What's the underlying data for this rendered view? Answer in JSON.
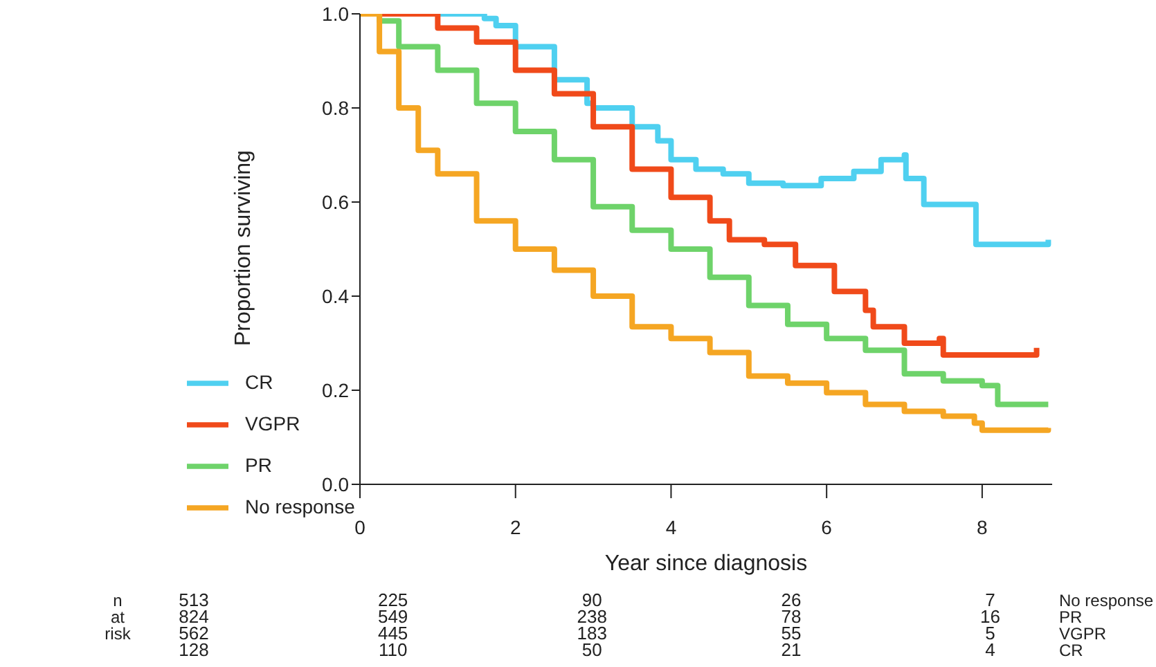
{
  "chart_data": {
    "type": "step",
    "xlabel": "Year since diagnosis",
    "ylabel": "Proportion surviving",
    "xlim": [
      0,
      8.9
    ],
    "xticks": [
      0,
      2,
      4,
      6,
      8
    ],
    "ylim": [
      0,
      1
    ],
    "yticks": [
      {
        "value": 0,
        "label": "0.0"
      },
      0.2,
      0.4,
      0.6,
      0.8,
      {
        "value": 1,
        "label": "1.0"
      }
    ],
    "legend": "bottom left",
    "grid": false,
    "marker": "none",
    "series": [
      {
        "name": "CR",
        "color": "#4fd0f0",
        "x": [
          0,
          1.6,
          1.75,
          2.0,
          2.5,
          2.92,
          3.0,
          3.5,
          3.83,
          4.0,
          4.32,
          4.67,
          5.0,
          5.44,
          5.93,
          6.35,
          6.7,
          7.0,
          7.02,
          7.24,
          7.25,
          7.9,
          7.92,
          8.25,
          8.85
        ],
        "values": [
          1,
          0.99,
          0.975,
          0.93,
          0.86,
          0.81,
          0.8,
          0.76,
          0.73,
          0.69,
          0.67,
          0.66,
          0.64,
          0.635,
          0.65,
          0.665,
          0.69,
          0.7,
          0.65,
          0.65,
          0.595,
          0.595,
          0.51,
          0.51,
          0.52
        ]
      },
      {
        "name": "VGPR",
        "color": "#f04a1a",
        "x": [
          0,
          0.67,
          1.0,
          1.5,
          2.0,
          2.5,
          3.0,
          3.5,
          4.0,
          4.5,
          4.75,
          5.2,
          5.6,
          6.1,
          6.5,
          6.6,
          6.95,
          7.0,
          7.45,
          7.5,
          8.25,
          8.7
        ],
        "values": [
          1,
          1,
          0.97,
          0.94,
          0.88,
          0.83,
          0.76,
          0.67,
          0.61,
          0.56,
          0.52,
          0.51,
          0.465,
          0.41,
          0.37,
          0.335,
          0.335,
          0.3,
          0.31,
          0.275,
          0.275,
          0.29
        ]
      },
      {
        "name": "PR",
        "color": "#6ed36a",
        "x": [
          0,
          0.25,
          0.5,
          1.0,
          1.5,
          2.0,
          2.5,
          3.0,
          3.5,
          4.0,
          4.5,
          5.0,
          5.5,
          6.0,
          6.5,
          7.0,
          7.5,
          8.0,
          8.2,
          8.85
        ],
        "values": [
          1,
          0.985,
          0.93,
          0.88,
          0.81,
          0.75,
          0.69,
          0.59,
          0.54,
          0.5,
          0.44,
          0.38,
          0.34,
          0.31,
          0.285,
          0.235,
          0.22,
          0.21,
          0.17,
          0.17
        ]
      },
      {
        "name": "No response",
        "color": "#f5a623",
        "x": [
          0,
          0.25,
          0.5,
          0.75,
          1.0,
          1.5,
          2.0,
          2.5,
          3.0,
          3.5,
          4.0,
          4.5,
          5.0,
          5.5,
          6.0,
          6.5,
          7.0,
          7.5,
          7.9,
          8.0,
          8.85
        ],
        "values": [
          1,
          0.92,
          0.8,
          0.71,
          0.66,
          0.56,
          0.5,
          0.455,
          0.4,
          0.335,
          0.31,
          0.28,
          0.23,
          0.215,
          0.195,
          0.17,
          0.155,
          0.145,
          0.13,
          0.115,
          0.12
        ]
      }
    ],
    "annotations": [
      "n at risk",
      "513 225 90 26 7 No response",
      "824 549 238 78 16 PR",
      "562 445 183 55 5 VGPR",
      "128 110 50 21 4 CR"
    ]
  }
}
